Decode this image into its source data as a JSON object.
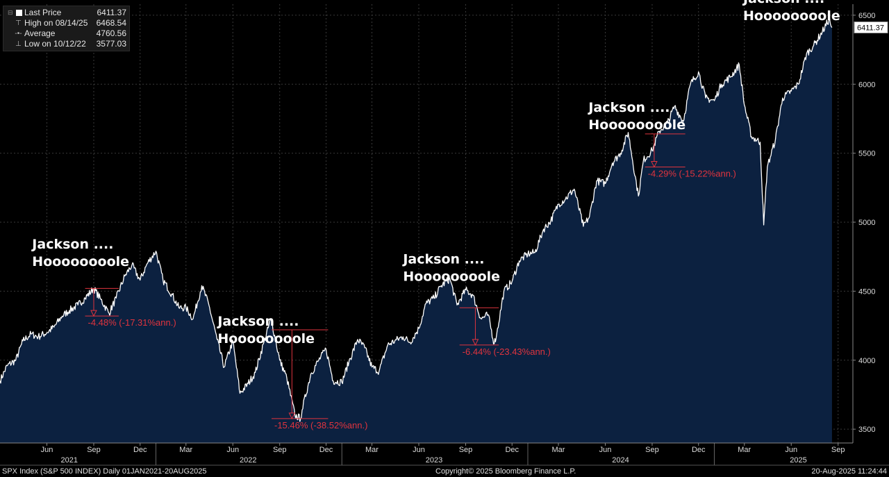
{
  "legend": {
    "last_price_label": "Last Price",
    "last_price_value": "6411.37",
    "high_label": "High on 08/14/25",
    "high_value": "6468.54",
    "average_label": "Average",
    "average_value": "4760.56",
    "low_label": "Low on 10/12/22",
    "low_value": "3577.03"
  },
  "footer": {
    "left": "SPX Index (S&P 500 INDEX)  Daily 01JAN2021-20AUG2025",
    "center": "Copyright© 2025 Bloomberg Finance L.P.",
    "right": "20-Aug-2025 11:24:44"
  },
  "colors": {
    "background": "#000000",
    "area_fill": "#0c2140",
    "line": "#ffffff",
    "annotation": "#e0343e",
    "grid": "#3a3a3a",
    "axis_text": "#dddddd"
  },
  "chart_data": {
    "type": "area",
    "title": "",
    "xlabel": "",
    "ylabel": "",
    "ylim": [
      3400,
      6580
    ],
    "yticks": [
      3500,
      4000,
      4500,
      5000,
      5500,
      6000,
      6500
    ],
    "last_value_tag": "6411.37",
    "x_range": [
      "2021-03-01",
      "2025-09-30"
    ],
    "month_ticks": [
      {
        "label": "Jun",
        "date": "2021-06-01"
      },
      {
        "label": "Sep",
        "date": "2021-09-01"
      },
      {
        "label": "Dec",
        "date": "2021-12-01"
      },
      {
        "label": "Mar",
        "date": "2022-03-01"
      },
      {
        "label": "Jun",
        "date": "2022-06-01"
      },
      {
        "label": "Sep",
        "date": "2022-09-01"
      },
      {
        "label": "Dec",
        "date": "2022-12-01"
      },
      {
        "label": "Mar",
        "date": "2023-03-01"
      },
      {
        "label": "Jun",
        "date": "2023-06-01"
      },
      {
        "label": "Sep",
        "date": "2023-09-01"
      },
      {
        "label": "Dec",
        "date": "2023-12-01"
      },
      {
        "label": "Mar",
        "date": "2024-03-01"
      },
      {
        "label": "Jun",
        "date": "2024-06-01"
      },
      {
        "label": "Sep",
        "date": "2024-09-01"
      },
      {
        "label": "Dec",
        "date": "2024-12-01"
      },
      {
        "label": "Mar",
        "date": "2025-03-01"
      },
      {
        "label": "Jun",
        "date": "2025-06-01"
      },
      {
        "label": "Sep",
        "date": "2025-09-01"
      }
    ],
    "year_ticks": [
      {
        "label": "2021",
        "date": "2021-07-15"
      },
      {
        "label": "2022",
        "date": "2022-07-01"
      },
      {
        "label": "2023",
        "date": "2023-07-01"
      },
      {
        "label": "2024",
        "date": "2024-07-01"
      },
      {
        "label": "2025",
        "date": "2025-06-15"
      }
    ],
    "year_dividers": [
      "2022-01-01",
      "2023-01-01",
      "2024-01-01",
      "2025-01-01"
    ],
    "series": [
      {
        "x": [
          "2021-03-01",
          "2021-03-15",
          "2021-04-01",
          "2021-04-15",
          "2021-05-01",
          "2021-05-15",
          "2021-06-01",
          "2021-06-15",
          "2021-07-01",
          "2021-07-15",
          "2021-08-01",
          "2021-08-15",
          "2021-09-01",
          "2021-09-15",
          "2021-10-01",
          "2021-10-15",
          "2021-11-01",
          "2021-11-15",
          "2021-12-01",
          "2021-12-15",
          "2022-01-01",
          "2022-01-15",
          "2022-02-01",
          "2022-02-15",
          "2022-03-01",
          "2022-03-15",
          "2022-04-01",
          "2022-04-15",
          "2022-05-01",
          "2022-05-15",
          "2022-06-01",
          "2022-06-15",
          "2022-07-01",
          "2022-07-15",
          "2022-08-01",
          "2022-08-15",
          "2022-09-01",
          "2022-09-15",
          "2022-10-01",
          "2022-10-12",
          "2022-10-15",
          "2022-11-01",
          "2022-11-15",
          "2022-12-01",
          "2022-12-15",
          "2023-01-01",
          "2023-01-15",
          "2023-02-01",
          "2023-02-15",
          "2023-03-01",
          "2023-03-15",
          "2023-04-01",
          "2023-04-15",
          "2023-05-01",
          "2023-05-15",
          "2023-06-01",
          "2023-06-15",
          "2023-07-01",
          "2023-07-15",
          "2023-08-01",
          "2023-08-15",
          "2023-09-01",
          "2023-09-15",
          "2023-10-01",
          "2023-10-15",
          "2023-10-27",
          "2023-11-01",
          "2023-11-15",
          "2023-12-01",
          "2023-12-15",
          "2024-01-01",
          "2024-01-15",
          "2024-02-01",
          "2024-02-15",
          "2024-03-01",
          "2024-03-15",
          "2024-04-01",
          "2024-04-19",
          "2024-05-01",
          "2024-05-15",
          "2024-06-01",
          "2024-06-15",
          "2024-07-01",
          "2024-07-16",
          "2024-08-05",
          "2024-08-15",
          "2024-09-01",
          "2024-09-15",
          "2024-10-01",
          "2024-10-15",
          "2024-11-01",
          "2024-11-15",
          "2024-12-01",
          "2024-12-15",
          "2025-01-01",
          "2025-01-15",
          "2025-02-01",
          "2025-02-19",
          "2025-03-01",
          "2025-03-15",
          "2025-04-01",
          "2025-04-08",
          "2025-04-15",
          "2025-05-01",
          "2025-05-15",
          "2025-06-01",
          "2025-06-15",
          "2025-07-01",
          "2025-07-15",
          "2025-08-01",
          "2025-08-14",
          "2025-08-20"
        ],
        "y": [
          3850,
          3960,
          4000,
          4140,
          4190,
          4170,
          4200,
          4240,
          4320,
          4360,
          4400,
          4450,
          4520,
          4440,
          4340,
          4450,
          4610,
          4690,
          4580,
          4700,
          4790,
          4580,
          4480,
          4380,
          4380,
          4300,
          4540,
          4400,
          4150,
          3950,
          4140,
          3760,
          3830,
          3910,
          4130,
          4300,
          4000,
          3870,
          3600,
          3577,
          3640,
          3900,
          3990,
          4080,
          3850,
          3840,
          3990,
          4150,
          4090,
          3950,
          3920,
          4110,
          4140,
          4170,
          4130,
          4230,
          4410,
          4450,
          4540,
          4590,
          4400,
          4510,
          4470,
          4300,
          4330,
          4120,
          4190,
          4500,
          4570,
          4720,
          4770,
          4780,
          4950,
          5010,
          5130,
          5170,
          5240,
          4970,
          5040,
          5300,
          5280,
          5430,
          5500,
          5650,
          5190,
          5450,
          5520,
          5660,
          5720,
          5840,
          5730,
          6000,
          6090,
          5900,
          5880,
          6000,
          6050,
          6140,
          5850,
          5620,
          5580,
          4980,
          5400,
          5600,
          5900,
          5950,
          6000,
          6220,
          6280,
          6380,
          6468,
          6411
        ]
      }
    ],
    "annotations": [
      {
        "label_line1": "Jackson ....",
        "label_line2": "Hoooooooole",
        "at": "2021-08-27",
        "text_y": 4810
      },
      {
        "label_line1": "Jackson ....",
        "label_line2": "Hoooooooole",
        "at": "2022-08-26",
        "text_y": 4250
      },
      {
        "label_line1": "Jackson ....",
        "label_line2": "Hoooooooole",
        "at": "2023-08-25",
        "text_y": 4700
      },
      {
        "label_line1": "Jackson ....",
        "label_line2": "Hoooooooole",
        "at": "2024-08-23",
        "text_y": 5800
      },
      {
        "label_line1": "Jackson ....",
        "label_line2": "Hoooooooole",
        "at": "2025-08-22",
        "text_y": 6590
      }
    ],
    "drawdowns": [
      {
        "label": "-4.48% (-17.31%ann.)",
        "x0": "2021-08-15",
        "x1": "2021-10-20",
        "high": 4520,
        "low": 4320,
        "arrow_x": "2021-09-01"
      },
      {
        "label": "-15.46% (-38.52%ann.)",
        "x0": "2022-08-16",
        "x1": "2022-12-05",
        "high": 4220,
        "low": 3577,
        "arrow_x": "2022-09-25"
      },
      {
        "label": "-6.44% (-23.43%ann.)",
        "x0": "2023-08-20",
        "x1": "2023-11-05",
        "high": 4380,
        "low": 4110,
        "arrow_x": "2023-09-20"
      },
      {
        "label": "-4.29% (-15.22%ann.)",
        "x0": "2024-08-18",
        "x1": "2024-11-05",
        "high": 5640,
        "low": 5400,
        "arrow_x": "2024-09-05"
      }
    ]
  }
}
